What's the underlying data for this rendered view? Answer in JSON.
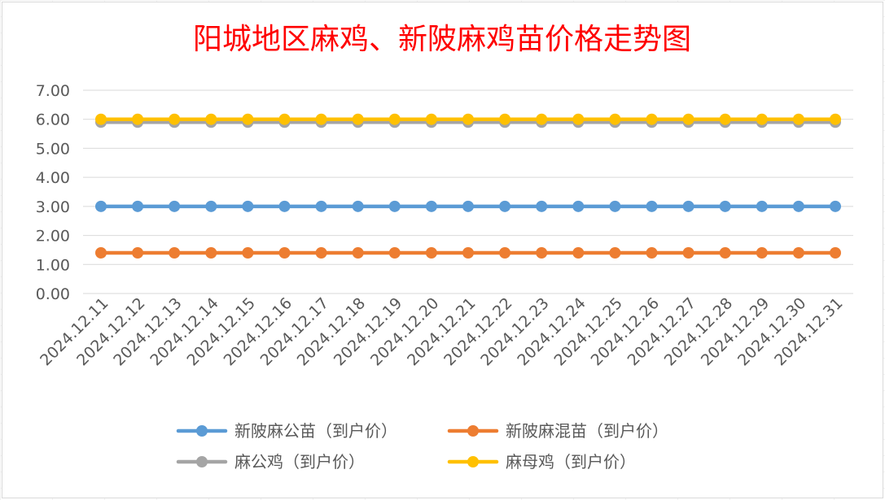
{
  "chart_data": {
    "type": "line",
    "title": "阳城地区麻鸡、新陂麻鸡苗价格走势图",
    "xlabel": "",
    "ylabel": "",
    "ylim": [
      0,
      7
    ],
    "yticks": [
      "0.00",
      "1.00",
      "2.00",
      "3.00",
      "4.00",
      "5.00",
      "6.00",
      "7.00"
    ],
    "grid": true,
    "legend_position": "bottom",
    "categories": [
      "2024.12.11",
      "2024.12.12",
      "2024.12.13",
      "2024.12.14",
      "2024.12.15",
      "2024.12.16",
      "2024.12.17",
      "2024.12.18",
      "2024.12.19",
      "2024.12.20",
      "2024.12.21",
      "2024.12.22",
      "2024.12.23",
      "2024.12.24",
      "2024.12.25",
      "2024.12.26",
      "2024.12.27",
      "2024.12.28",
      "2024.12.29",
      "2024.12.30",
      "2024.12.31"
    ],
    "series": [
      {
        "name": "新陂麻公苗（到户价）",
        "color": "#5b9bd5",
        "values": [
          3.0,
          3.0,
          3.0,
          3.0,
          3.0,
          3.0,
          3.0,
          3.0,
          3.0,
          3.0,
          3.0,
          3.0,
          3.0,
          3.0,
          3.0,
          3.0,
          3.0,
          3.0,
          3.0,
          3.0,
          3.0
        ]
      },
      {
        "name": "新陂麻混苗（到户价）",
        "color": "#ed7d31",
        "values": [
          1.4,
          1.4,
          1.4,
          1.4,
          1.4,
          1.4,
          1.4,
          1.4,
          1.4,
          1.4,
          1.4,
          1.4,
          1.4,
          1.4,
          1.4,
          1.4,
          1.4,
          1.4,
          1.4,
          1.4,
          1.4
        ]
      },
      {
        "name": "麻公鸡（到户价）",
        "color": "#a5a5a5",
        "values": [
          5.9,
          5.9,
          5.9,
          5.9,
          5.9,
          5.9,
          5.9,
          5.9,
          5.9,
          5.9,
          5.9,
          5.9,
          5.9,
          5.9,
          5.9,
          5.9,
          5.9,
          5.9,
          5.9,
          5.9,
          5.9
        ]
      },
      {
        "name": "麻母鸡（到户价）",
        "color": "#ffc000",
        "values": [
          6.0,
          6.0,
          6.0,
          6.0,
          6.0,
          6.0,
          6.0,
          6.0,
          6.0,
          6.0,
          6.0,
          6.0,
          6.0,
          6.0,
          6.0,
          6.0,
          6.0,
          6.0,
          6.0,
          6.0,
          6.0
        ]
      }
    ]
  }
}
